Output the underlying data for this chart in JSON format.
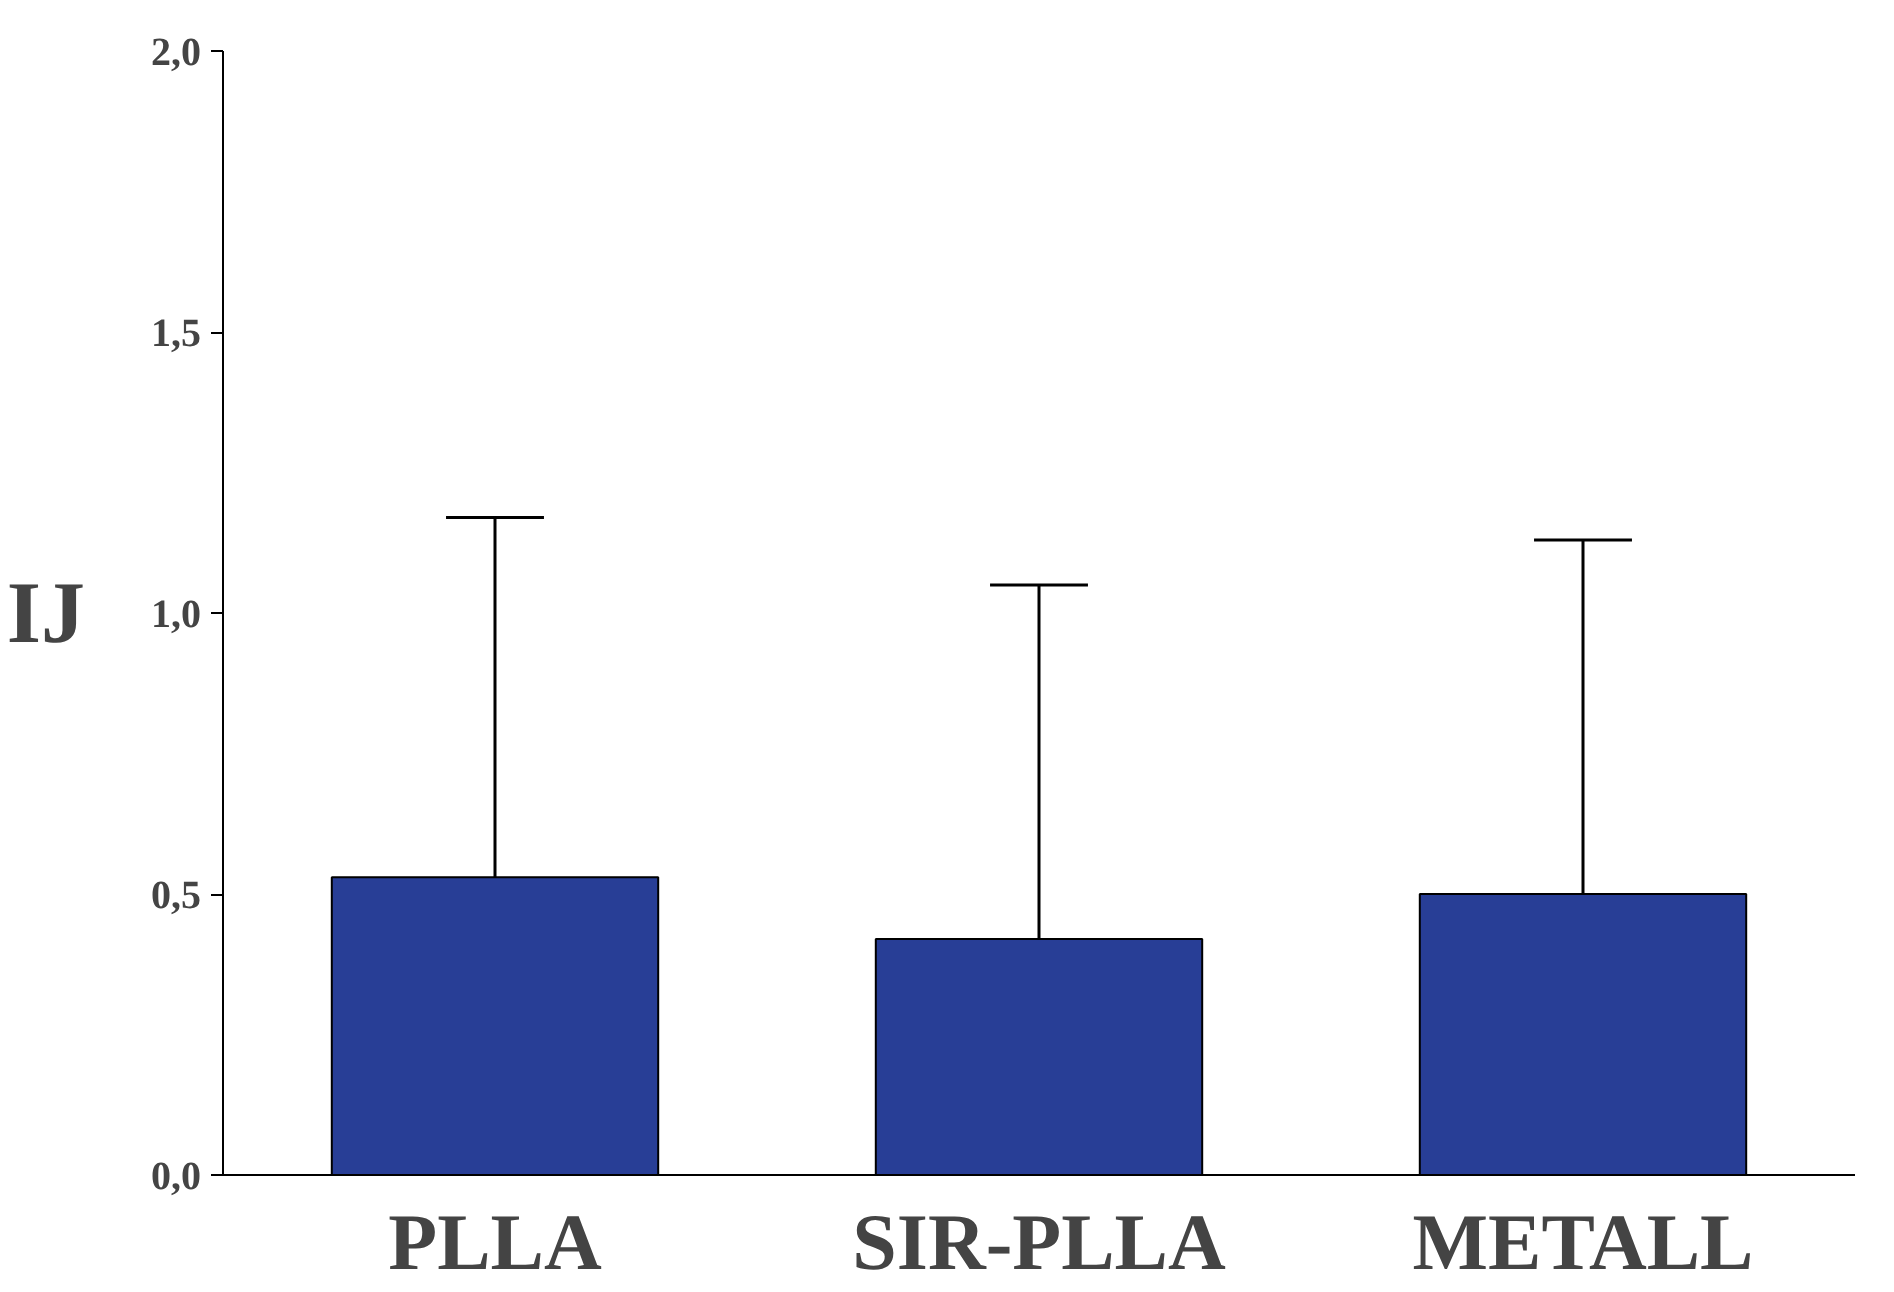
{
  "chart_data": {
    "type": "bar",
    "ylabel": "IJ",
    "categories": [
      "PLLA",
      "SIR-PLLA",
      "METALL"
    ],
    "values": [
      0.53,
      0.42,
      0.5
    ],
    "errors": [
      [
        0.53,
        1.17
      ],
      [
        0.42,
        1.05
      ],
      [
        0.5,
        1.13
      ]
    ],
    "color": "#283e96",
    "ylim": [
      0,
      2.0
    ],
    "yticks": [
      {
        "value": 0,
        "label": "0,0"
      },
      {
        "value": 0.5,
        "label": "0,5"
      },
      {
        "value": 1.0,
        "label": "1,0"
      },
      {
        "value": 1.5,
        "label": "1,5"
      },
      {
        "value": 2.0,
        "label": "2,0"
      }
    ],
    "grid": false
  }
}
